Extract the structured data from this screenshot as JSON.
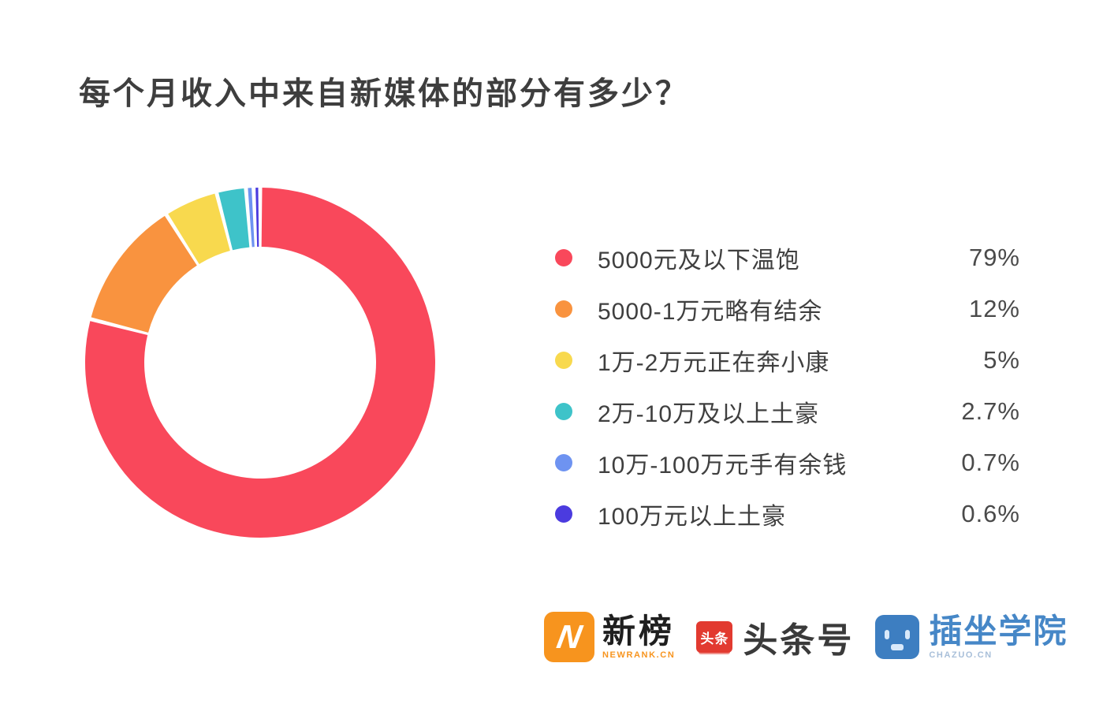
{
  "title": "每个月收入中来自新媒体的部分有多少？",
  "chart_data": {
    "type": "pie",
    "donut": true,
    "title": "每个月收入中来自新媒体的部分有多少？",
    "categories": [
      "5000元及以下温饱",
      "5000-1万元略有结余",
      "1万-2万元正在奔小康",
      "2万-10万及以上土豪",
      "10万-100万元手有余钱",
      "100万元以上土豪"
    ],
    "values": [
      79,
      12,
      5,
      2.7,
      0.7,
      0.6
    ],
    "value_labels": [
      "79%",
      "12%",
      "5%",
      "2.7%",
      "0.7%",
      "0.6%"
    ],
    "colors": [
      "#F9485B",
      "#F9933F",
      "#F8D94E",
      "#3EC3C9",
      "#6E93F1",
      "#4B3BDF"
    ],
    "start_angle_deg": 0,
    "direction": "clockwise",
    "legend_position": "right",
    "grid": false
  },
  "footer": {
    "brands": [
      {
        "name": "新榜",
        "logo_text": "N",
        "subtext": "NEWRANK.CN"
      },
      {
        "name": "头条号",
        "logo_text": "头条"
      },
      {
        "name": "插坐学院",
        "subtext": "CHAZUO.CN"
      }
    ]
  },
  "style": {
    "background": "#FFFFFF",
    "title_color": "#3E3E3E",
    "label_color": "#3F3F3F",
    "percent_color": "#4A4A4A",
    "newrank_orange": "#F7941E",
    "toutiao_red": "#E23A30",
    "chazuo_blue": "#3D7EC1"
  }
}
